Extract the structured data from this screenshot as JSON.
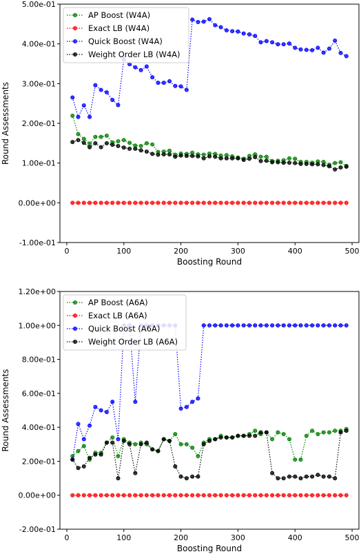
{
  "chart_data": [
    {
      "type": "line",
      "xlabel": "Boosting Round",
      "ylabel": "Round Assessments",
      "xlim": [
        -12,
        512
      ],
      "ylim": [
        -0.1,
        0.5
      ],
      "xticks": [
        0,
        100,
        200,
        300,
        400,
        500
      ],
      "xtick_labels": [
        "0",
        "100",
        "200",
        "300",
        "400",
        "500"
      ],
      "yticks": [
        -0.1,
        0.0,
        0.1,
        0.2,
        0.3,
        0.4,
        0.5
      ],
      "ytick_labels": [
        "-1.00e-01",
        "0.00e+00",
        "1.00e-01",
        "2.00e-01",
        "3.00e-01",
        "4.00e-01",
        "5.00e-01"
      ],
      "grid": false,
      "legend_position": "upper-left",
      "x": [
        10,
        20,
        30,
        40,
        50,
        60,
        70,
        80,
        90,
        100,
        110,
        120,
        130,
        140,
        150,
        160,
        170,
        180,
        190,
        200,
        210,
        220,
        230,
        240,
        250,
        260,
        270,
        280,
        290,
        300,
        310,
        320,
        330,
        340,
        350,
        360,
        370,
        380,
        390,
        400,
        410,
        420,
        430,
        440,
        450,
        460,
        470,
        480,
        490
      ],
      "series": [
        {
          "name": "AP Boost (W4A)",
          "color": "#008000",
          "values": [
            0.219,
            0.173,
            0.161,
            0.149,
            0.166,
            0.166,
            0.169,
            0.152,
            0.155,
            0.158,
            0.151,
            0.144,
            0.143,
            0.15,
            0.147,
            0.128,
            0.129,
            0.131,
            0.121,
            0.124,
            0.123,
            0.126,
            0.122,
            0.121,
            0.124,
            0.123,
            0.119,
            0.12,
            0.117,
            0.114,
            0.111,
            0.118,
            0.122,
            0.116,
            0.116,
            0.105,
            0.106,
            0.107,
            0.112,
            0.111,
            0.103,
            0.103,
            0.101,
            0.104,
            0.103,
            0.096,
            0.1,
            0.102,
            0.093
          ]
        },
        {
          "name": "Exact LB (W4A)",
          "color": "#ff0000",
          "values": [
            0,
            0,
            0,
            0,
            0,
            0,
            0,
            0,
            0,
            0,
            0,
            0,
            0,
            0,
            0,
            0,
            0,
            0,
            0,
            0,
            0,
            0,
            0,
            0,
            0,
            0,
            0,
            0,
            0,
            0,
            0,
            0,
            0,
            0,
            0,
            0,
            0,
            0,
            0,
            0,
            0,
            0,
            0,
            0,
            0,
            0,
            0,
            0,
            0
          ]
        },
        {
          "name": "Quick Boost (W4A)",
          "color": "#0000ff",
          "values": [
            0.265,
            0.216,
            0.245,
            0.216,
            0.296,
            0.284,
            0.278,
            0.259,
            0.246,
            0.361,
            0.349,
            0.341,
            0.334,
            0.343,
            0.316,
            0.302,
            0.302,
            0.306,
            0.294,
            0.293,
            0.284,
            0.461,
            0.455,
            0.456,
            0.462,
            0.447,
            0.442,
            0.434,
            0.432,
            0.431,
            0.426,
            0.424,
            0.42,
            0.404,
            0.407,
            0.404,
            0.399,
            0.399,
            0.401,
            0.39,
            0.386,
            0.385,
            0.384,
            0.39,
            0.378,
            0.388,
            0.408,
            0.377,
            0.369
          ]
        },
        {
          "name": "Weight Order LB (W4A)",
          "color": "#000000",
          "values": [
            0.153,
            0.158,
            0.151,
            0.14,
            0.15,
            0.14,
            0.15,
            0.146,
            0.143,
            0.139,
            0.136,
            0.136,
            0.132,
            0.129,
            0.123,
            0.121,
            0.122,
            0.122,
            0.116,
            0.119,
            0.118,
            0.118,
            0.117,
            0.112,
            0.117,
            0.116,
            0.112,
            0.112,
            0.112,
            0.112,
            0.108,
            0.111,
            0.115,
            0.105,
            0.106,
            0.102,
            0.102,
            0.101,
            0.101,
            0.1,
            0.098,
            0.098,
            0.097,
            0.097,
            0.095,
            0.092,
            0.084,
            0.089,
            0.091
          ]
        }
      ]
    },
    {
      "type": "line",
      "xlabel": "Boosting Round",
      "ylabel": "Round Assessments",
      "xlim": [
        -12,
        512
      ],
      "ylim": [
        -0.2,
        1.2
      ],
      "xticks": [
        0,
        100,
        200,
        300,
        400,
        500
      ],
      "xtick_labels": [
        "0",
        "100",
        "200",
        "300",
        "400",
        "500"
      ],
      "yticks": [
        -0.2,
        0.0,
        0.2,
        0.4,
        0.6,
        0.8,
        1.0,
        1.2
      ],
      "ytick_labels": [
        "-2.00e-01",
        "0.00e+00",
        "2.00e-01",
        "4.00e-01",
        "6.00e-01",
        "8.00e-01",
        "1.00e+00",
        "1.20e+00"
      ],
      "grid": false,
      "legend_position": "upper-left",
      "x": [
        10,
        20,
        30,
        40,
        50,
        60,
        70,
        80,
        90,
        100,
        110,
        120,
        130,
        140,
        150,
        160,
        170,
        180,
        190,
        200,
        210,
        220,
        230,
        240,
        250,
        260,
        270,
        280,
        290,
        300,
        310,
        320,
        330,
        340,
        350,
        360,
        370,
        380,
        390,
        400,
        410,
        420,
        430,
        440,
        450,
        460,
        470,
        480,
        490
      ],
      "series": [
        {
          "name": "AP Boost (A6A)",
          "color": "#008000",
          "values": [
            0.23,
            0.26,
            0.29,
            0.21,
            0.25,
            0.25,
            0.31,
            0.34,
            0.23,
            0.33,
            0.31,
            0.3,
            0.31,
            0.3,
            0.27,
            0.26,
            0.33,
            0.32,
            0.36,
            0.3,
            0.3,
            0.28,
            0.23,
            0.31,
            0.33,
            0.33,
            0.35,
            0.34,
            0.34,
            0.35,
            0.35,
            0.36,
            0.38,
            0.36,
            0.37,
            0.33,
            0.37,
            0.36,
            0.33,
            0.21,
            0.21,
            0.35,
            0.38,
            0.36,
            0.37,
            0.37,
            0.38,
            0.38,
            0.39
          ]
        },
        {
          "name": "Exact LB (A6A)",
          "color": "#ff0000",
          "values": [
            0,
            0,
            0,
            0,
            0,
            0,
            0,
            0,
            0,
            0,
            0,
            0,
            0,
            0,
            0,
            0,
            0,
            0,
            0,
            0,
            0,
            0,
            0,
            0,
            0,
            0,
            0,
            0,
            0,
            0,
            0,
            0,
            0,
            0,
            0,
            0,
            0,
            0,
            0,
            0,
            0,
            0,
            0,
            0,
            0,
            0,
            0,
            0,
            0
          ]
        },
        {
          "name": "Quick Boost (A6A)",
          "color": "#0000ff",
          "values": [
            0.21,
            0.42,
            0.33,
            0.41,
            0.52,
            0.5,
            0.49,
            0.55,
            0.33,
            1.0,
            1.0,
            0.55,
            1.0,
            1.0,
            1.0,
            1.0,
            1.0,
            1.0,
            1.0,
            0.51,
            0.52,
            0.55,
            0.57,
            1.0,
            1.0,
            1.0,
            1.0,
            1.0,
            1.0,
            1.0,
            1.0,
            1.0,
            1.0,
            1.0,
            1.0,
            1.0,
            1.0,
            1.0,
            1.0,
            1.0,
            1.0,
            1.0,
            1.0,
            1.0,
            1.0,
            1.0,
            1.0,
            1.0,
            1.0
          ]
        },
        {
          "name": "Weight Order LB (A6A)",
          "color": "#000000",
          "values": [
            0.21,
            0.16,
            0.17,
            0.22,
            0.24,
            0.24,
            0.31,
            0.31,
            0.1,
            0.32,
            0.3,
            0.13,
            0.3,
            0.31,
            0.27,
            0.26,
            0.33,
            0.32,
            0.17,
            0.11,
            0.1,
            0.11,
            0.11,
            0.3,
            0.32,
            0.33,
            0.34,
            0.34,
            0.34,
            0.35,
            0.35,
            0.35,
            0.35,
            0.37,
            0.37,
            0.13,
            0.1,
            0.1,
            0.11,
            0.11,
            0.1,
            0.11,
            0.11,
            0.12,
            0.11,
            0.11,
            0.1,
            0.37,
            0.38
          ]
        }
      ]
    }
  ]
}
